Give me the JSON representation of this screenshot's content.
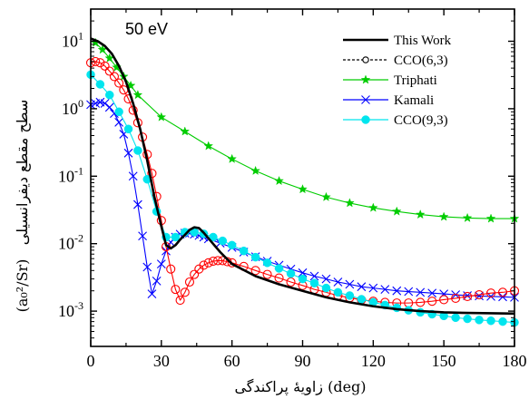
{
  "chart_data": {
    "type": "line",
    "annotation": "50 eV",
    "xlabel": "زاویهٔ پراکندگی (deg)",
    "ylabel_text": "سطح مقطع دیفرانسیلی",
    "ylabel_unit": "(a₀²/Sr)",
    "xlim": [
      0,
      180
    ],
    "ylim": [
      0.0003,
      30
    ],
    "yscale": "log",
    "x_ticks": [
      0,
      30,
      60,
      90,
      120,
      150,
      180
    ],
    "x_tick_labels": [
      "0",
      "30",
      "60",
      "90",
      "120",
      "150",
      "180"
    ],
    "y_ticks": [
      0.001,
      0.01,
      0.1,
      1,
      10
    ],
    "y_tick_labels": [
      {
        "base": "10",
        "exp": "-3"
      },
      {
        "base": "10",
        "exp": "-2"
      },
      {
        "base": "10",
        "exp": "-1"
      },
      {
        "base": "10",
        "exp": "0"
      },
      {
        "base": "10",
        "exp": "1"
      }
    ],
    "legend_position": "top-right",
    "series": [
      {
        "name": "This Work",
        "color": "#000000",
        "marker": "none",
        "line": "solid",
        "x": [
          0,
          3,
          6,
          9,
          12,
          15,
          18,
          21,
          24,
          27,
          30,
          32,
          34,
          36,
          38,
          40,
          42,
          44,
          46,
          48,
          50,
          55,
          60,
          70,
          80,
          90,
          100,
          110,
          120,
          130,
          140,
          150,
          160,
          170,
          180
        ],
        "y": [
          11,
          10,
          8.5,
          6.5,
          4.3,
          2.5,
          1.2,
          0.5,
          0.17,
          0.05,
          0.018,
          0.0095,
          0.0085,
          0.0095,
          0.0115,
          0.0135,
          0.016,
          0.0175,
          0.017,
          0.0145,
          0.012,
          0.0075,
          0.005,
          0.0033,
          0.0025,
          0.002,
          0.0016,
          0.00135,
          0.00118,
          0.00107,
          0.001,
          0.00096,
          0.00094,
          0.00093,
          0.00092
        ]
      },
      {
        "name": "CCO(6,3)",
        "color": "#ff0000",
        "marker": "circle-open",
        "line": "solid",
        "x": [
          0,
          2,
          4,
          6,
          8,
          10,
          12,
          14,
          16,
          18,
          20,
          22,
          24,
          26,
          28,
          30,
          32,
          34,
          36,
          38,
          40,
          42,
          44,
          46,
          48,
          50,
          52,
          54,
          56,
          58,
          60,
          65,
          70,
          75,
          80,
          85,
          90,
          95,
          100,
          105,
          110,
          115,
          120,
          125,
          130,
          135,
          140,
          145,
          150,
          155,
          160,
          165,
          170,
          175,
          180
        ],
        "y": [
          4.8,
          5.0,
          4.8,
          4.3,
          3.6,
          3.0,
          2.4,
          1.9,
          1.4,
          0.95,
          0.62,
          0.38,
          0.21,
          0.11,
          0.05,
          0.022,
          0.009,
          0.0042,
          0.0021,
          0.00145,
          0.0019,
          0.0027,
          0.0035,
          0.0042,
          0.0048,
          0.0052,
          0.0055,
          0.0056,
          0.0056,
          0.0054,
          0.0052,
          0.0046,
          0.004,
          0.0035,
          0.0031,
          0.0027,
          0.0024,
          0.0021,
          0.0019,
          0.0017,
          0.00158,
          0.00147,
          0.0014,
          0.00135,
          0.00132,
          0.00132,
          0.00135,
          0.0014,
          0.00148,
          0.00155,
          0.00165,
          0.00175,
          0.00185,
          0.0019,
          0.002
        ]
      },
      {
        "name": "Triphati",
        "color": "#00cc00",
        "marker": "star",
        "line": "solid",
        "x": [
          2,
          5,
          8,
          11,
          14,
          17,
          20,
          30,
          40,
          50,
          60,
          70,
          80,
          90,
          100,
          110,
          120,
          130,
          140,
          150,
          160,
          170,
          180
        ],
        "y": [
          9.5,
          7.5,
          5.6,
          4.1,
          3.0,
          2.2,
          1.6,
          0.75,
          0.46,
          0.28,
          0.18,
          0.12,
          0.085,
          0.064,
          0.049,
          0.04,
          0.034,
          0.03,
          0.027,
          0.025,
          0.024,
          0.0235,
          0.0235
        ]
      },
      {
        "name": "Kamali",
        "color": "#0000ff",
        "marker": "x",
        "line": "solid",
        "x": [
          0,
          2,
          4,
          6,
          8,
          10,
          12,
          14,
          16,
          18,
          20,
          22,
          24,
          26,
          28,
          30,
          32,
          34,
          36,
          38,
          40,
          42,
          44,
          46,
          48,
          50,
          55,
          60,
          65,
          70,
          75,
          80,
          85,
          90,
          95,
          100,
          105,
          110,
          115,
          120,
          125,
          130,
          135,
          140,
          145,
          150,
          155,
          160,
          165,
          170,
          175,
          180
        ],
        "y": [
          1.15,
          1.2,
          1.25,
          1.2,
          1.05,
          0.85,
          0.63,
          0.42,
          0.22,
          0.1,
          0.038,
          0.013,
          0.0045,
          0.0018,
          0.0028,
          0.005,
          0.0078,
          0.0105,
          0.0125,
          0.0138,
          0.0143,
          0.0143,
          0.0138,
          0.0132,
          0.0125,
          0.0118,
          0.0102,
          0.0088,
          0.0075,
          0.0064,
          0.0055,
          0.0048,
          0.0042,
          0.0037,
          0.0033,
          0.003,
          0.0027,
          0.0025,
          0.0023,
          0.0022,
          0.0021,
          0.002,
          0.00195,
          0.0019,
          0.00185,
          0.0018,
          0.00175,
          0.0017,
          0.00168,
          0.00165,
          0.00163,
          0.0016
        ]
      },
      {
        "name": "CCO(9,3)",
        "color": "#00e5ee",
        "marker": "circle-filled",
        "line": "solid",
        "x": [
          0,
          4,
          8,
          12,
          16,
          20,
          24,
          28,
          32,
          36,
          40,
          44,
          48,
          52,
          56,
          60,
          65,
          70,
          75,
          80,
          85,
          90,
          95,
          100,
          105,
          110,
          115,
          120,
          125,
          130,
          135,
          140,
          145,
          150,
          155,
          160,
          165,
          170,
          175,
          180
        ],
        "y": [
          3.2,
          2.3,
          1.6,
          0.9,
          0.5,
          0.24,
          0.09,
          0.03,
          0.0125,
          0.0125,
          0.0148,
          0.0148,
          0.014,
          0.0125,
          0.011,
          0.0095,
          0.0078,
          0.0063,
          0.0052,
          0.0043,
          0.0036,
          0.003,
          0.0026,
          0.0022,
          0.0019,
          0.0017,
          0.0015,
          0.00135,
          0.00123,
          0.00112,
          0.00103,
          0.00096,
          0.0009,
          0.00085,
          0.0008,
          0.00077,
          0.00074,
          0.00072,
          0.0007,
          0.00068
        ]
      }
    ]
  },
  "legend_items": [
    {
      "label": "This Work"
    },
    {
      "label": "CCO(6,3)",
      "prefix": "-----o----"
    },
    {
      "label": "Triphati"
    },
    {
      "label": "Kamali"
    },
    {
      "label": "CCO(9,3)"
    }
  ]
}
